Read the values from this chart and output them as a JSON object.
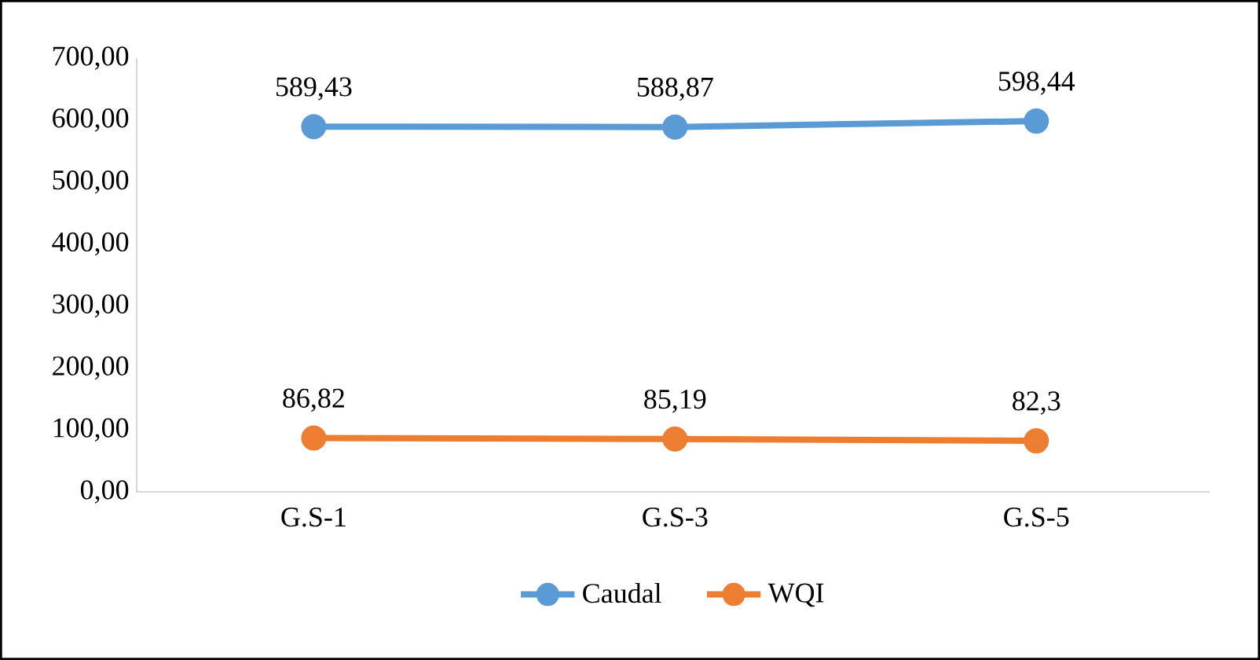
{
  "chart_data": {
    "type": "line",
    "categories": [
      "G.S-1",
      "G.S-3",
      "G.S-5"
    ],
    "series": [
      {
        "name": "Caudal",
        "color": "#5b9bd5",
        "values": [
          589.43,
          588.87,
          598.44
        ],
        "value_labels": [
          "589,43",
          "588,87",
          "598,44"
        ]
      },
      {
        "name": "WQI",
        "color": "#ed7d31",
        "values": [
          86.82,
          85.19,
          82.3
        ],
        "value_labels": [
          "86,82",
          "85,19",
          "82,3"
        ]
      }
    ],
    "ylim": [
      0,
      700
    ],
    "yticks": [
      {
        "value": 0,
        "label": "0,00"
      },
      {
        "value": 100,
        "label": "100,00"
      },
      {
        "value": 200,
        "label": "200,00"
      },
      {
        "value": 300,
        "label": "300,00"
      },
      {
        "value": 400,
        "label": "400,00"
      },
      {
        "value": 500,
        "label": "500,00"
      },
      {
        "value": 600,
        "label": "600,00"
      },
      {
        "value": 700,
        "label": "700,00"
      }
    ],
    "marker": "circle",
    "legend": "bottom"
  }
}
